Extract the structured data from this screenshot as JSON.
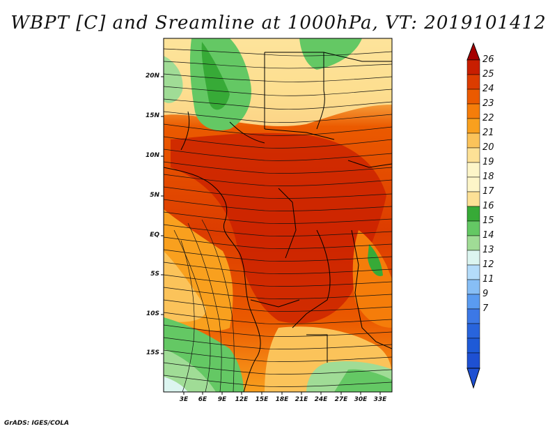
{
  "title": "WBPT [C] and Sreamline at 1000hPa, VT: 2019101412",
  "credit": "GrADS: IGES/COLA",
  "map": {
    "lat_labels": [
      "20N",
      "15N",
      "10N",
      "5N",
      "EQ",
      "5S",
      "10S",
      "15S"
    ],
    "lon_labels": [
      "3E",
      "6E",
      "9E",
      "12E",
      "15E",
      "18E",
      "21E",
      "24E",
      "27E",
      "30E",
      "33E"
    ]
  },
  "colorbar": {
    "labels": [
      "26",
      "25",
      "24",
      "23",
      "22",
      "21",
      "20",
      "19",
      "18",
      "17",
      "16",
      "15",
      "14",
      "13",
      "12",
      "11",
      "9",
      "7"
    ],
    "colors": [
      "#a50000",
      "#c81e00",
      "#dc3c00",
      "#eb5a00",
      "#f57d0a",
      "#f9a01e",
      "#fbc35a",
      "#fde196",
      "#fdf5c8",
      "#37aa37",
      "#64c864",
      "#a0dc96",
      "#dcf5f0",
      "#b4dcfa",
      "#87bef5",
      "#5a9bf0",
      "#3c78e6",
      "#1e50d2"
    ]
  }
}
